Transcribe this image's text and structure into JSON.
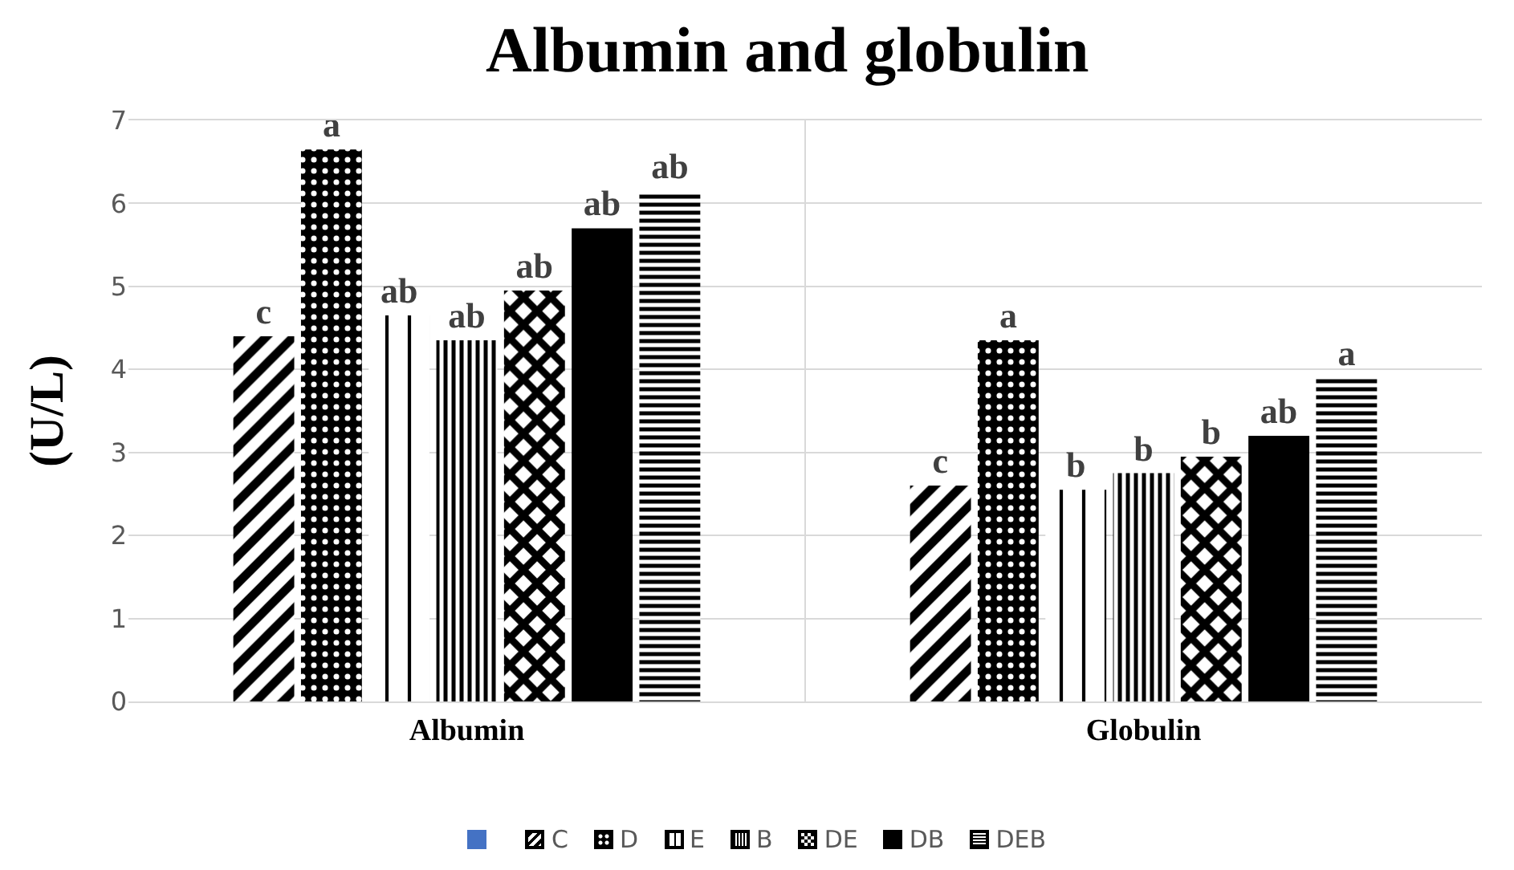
{
  "chart_data": {
    "type": "bar",
    "title": "Albumin and globulin",
    "ylabel": "(U/L)",
    "categories": [
      "Albumin",
      "Globulin"
    ],
    "series": [
      {
        "name": "C",
        "color": "#000000",
        "values": [
          4.4,
          2.6
        ],
        "value_labels": [
          "c",
          "c"
        ]
      },
      {
        "name": "D",
        "color": "#000000",
        "values": [
          6.65,
          4.35
        ],
        "value_labels": [
          "a",
          "a"
        ]
      },
      {
        "name": "E",
        "color": "#000000",
        "values": [
          4.65,
          2.55
        ],
        "value_labels": [
          "ab",
          "b"
        ]
      },
      {
        "name": "B",
        "color": "#000000",
        "values": [
          4.35,
          2.75
        ],
        "value_labels": [
          "ab",
          "b"
        ]
      },
      {
        "name": "DE",
        "color": "#000000",
        "values": [
          4.95,
          2.95
        ],
        "value_labels": [
          "ab",
          "b"
        ]
      },
      {
        "name": "DB",
        "color": "#000000",
        "values": [
          5.7,
          3.2
        ],
        "value_labels": [
          "ab",
          "ab"
        ]
      },
      {
        "name": "DEB",
        "color": "#000000",
        "values": [
          6.15,
          3.9
        ],
        "value_labels": [
          "ab",
          "a"
        ]
      }
    ],
    "ylim": [
      0,
      7
    ],
    "yticks": [
      0,
      1,
      2,
      3,
      4,
      5,
      6,
      7
    ],
    "grid": "y",
    "legend": "bottom"
  }
}
